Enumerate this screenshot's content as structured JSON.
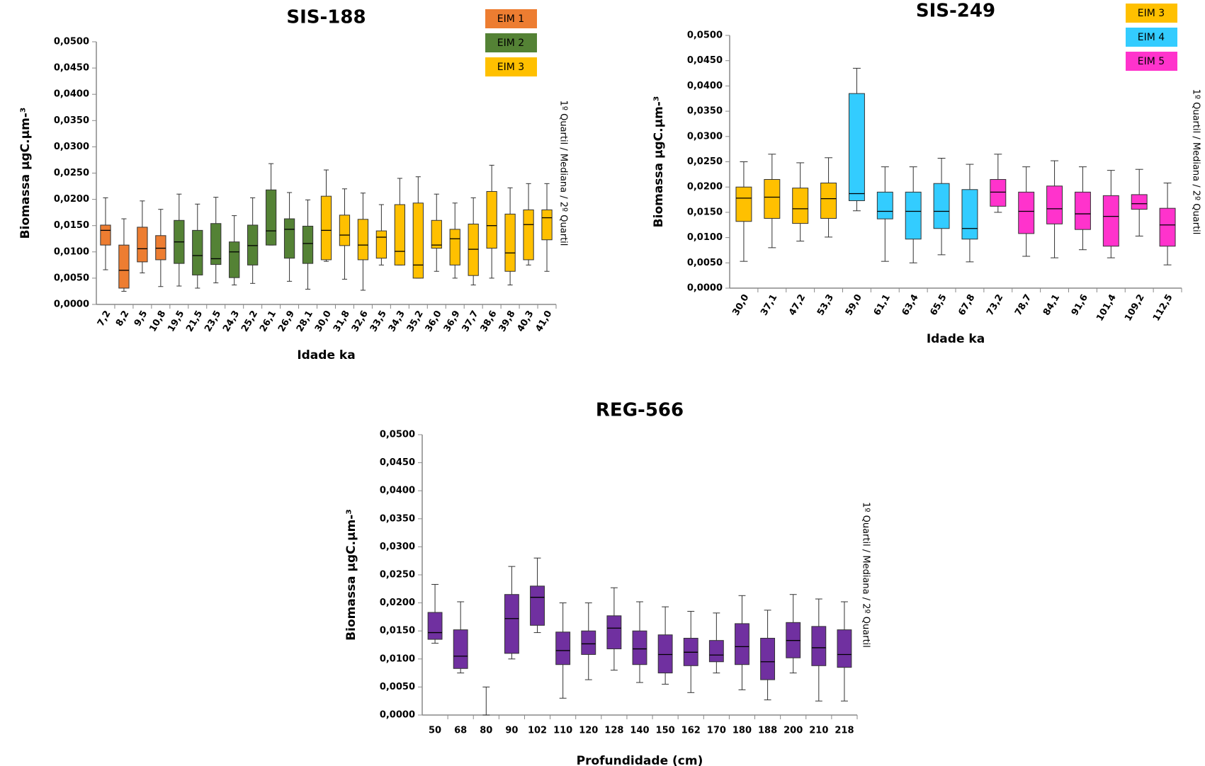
{
  "chart_data": [
    {
      "type": "box",
      "title": "SIS-188",
      "x_label": "Idade ka",
      "y_label": "Biomassa µgC.µm-³",
      "side_label": "1º Quartil /  Mediana / 2º Quartil",
      "ylim": [
        0,
        0.05
      ],
      "yticks": [
        {
          "value": 0,
          "label": "0,0000"
        },
        {
          "value": 0.005,
          "label": "0,0050"
        },
        {
          "value": 0.01,
          "label": "0,0100"
        },
        {
          "value": 0.015,
          "label": "0,0150"
        },
        {
          "value": 0.02,
          "label": "0,0200"
        },
        {
          "value": 0.025,
          "label": "0,0250"
        },
        {
          "value": 0.03,
          "label": "0,0300"
        },
        {
          "value": 0.035,
          "label": "0,0350"
        },
        {
          "value": 0.04,
          "label": "0,0400"
        },
        {
          "value": 0.045,
          "label": "0,0450"
        },
        {
          "value": 0.05,
          "label": "0,0500"
        }
      ],
      "series": [
        {
          "name": "EIM 1",
          "color": "#ED7D31",
          "categories": [
            "7,2",
            "8,2",
            "9,5",
            "10,8"
          ],
          "min": [
            0.0066,
            0.0025,
            0.006,
            0.0034
          ],
          "q1": [
            0.0113,
            0.0031,
            0.0081,
            0.0085
          ],
          "median": [
            0.0141,
            0.0065,
            0.0106,
            0.0107
          ],
          "q3": [
            0.0151,
            0.0113,
            0.0147,
            0.0131
          ],
          "max": [
            0.0203,
            0.0163,
            0.0197,
            0.0181
          ]
        },
        {
          "name": "EIM 2",
          "color": "#548235",
          "categories": [
            "19,5",
            "21,5",
            "23,5",
            "24,3",
            "25,2",
            "26,1",
            "26,9",
            "28,1"
          ],
          "min": [
            0.0035,
            0.0031,
            0.0041,
            0.0037,
            0.004,
            0.0113,
            0.0044,
            0.0029
          ],
          "q1": [
            0.0078,
            0.0056,
            0.0076,
            0.0051,
            0.0075,
            0.0113,
            0.0088,
            0.0078
          ],
          "median": [
            0.0119,
            0.0093,
            0.0087,
            0.01,
            0.0112,
            0.014,
            0.0143,
            0.0116
          ],
          "q3": [
            0.016,
            0.0141,
            0.0154,
            0.0119,
            0.0151,
            0.0218,
            0.0163,
            0.0149
          ],
          "max": [
            0.021,
            0.0191,
            0.0204,
            0.0169,
            0.0203,
            0.0268,
            0.0213,
            0.0199
          ]
        },
        {
          "name": "EIM 3",
          "color": "#FFC000",
          "categories": [
            "30,0",
            "31,8",
            "32,6",
            "33,5",
            "34,3",
            "35,2",
            "36,0",
            "36,9",
            "37,7",
            "38,6",
            "39,8",
            "40,3",
            "41,0"
          ],
          "min": [
            0.0082,
            0.0048,
            0.0027,
            0.0075,
            0.0075,
            0.005,
            0.0063,
            0.005,
            0.0037,
            0.005,
            0.0037,
            0.0075,
            0.0063
          ],
          "q1": [
            0.0085,
            0.0112,
            0.0085,
            0.0088,
            0.0075,
            0.005,
            0.0107,
            0.0075,
            0.0055,
            0.0107,
            0.0063,
            0.0085,
            0.0123
          ],
          "median": [
            0.0141,
            0.0132,
            0.0113,
            0.0128,
            0.0101,
            0.0075,
            0.0113,
            0.0125,
            0.0105,
            0.015,
            0.0098,
            0.0152,
            0.0165
          ],
          "q3": [
            0.0206,
            0.017,
            0.0162,
            0.014,
            0.019,
            0.0193,
            0.016,
            0.0143,
            0.0153,
            0.0215,
            0.0172,
            0.018,
            0.018
          ],
          "max": [
            0.0256,
            0.022,
            0.0212,
            0.019,
            0.024,
            0.0243,
            0.021,
            0.0193,
            0.0203,
            0.0265,
            0.0222,
            0.023,
            0.023
          ]
        }
      ]
    },
    {
      "type": "box",
      "title": "SIS-249",
      "x_label": "Idade ka",
      "y_label": "Biomassa µgC.µm-³",
      "side_label": "1º Quartil /  Mediana / 2º Quartil",
      "ylim": [
        0,
        0.05
      ],
      "yticks": [
        {
          "value": 0,
          "label": "0,0000"
        },
        {
          "value": 0.005,
          "label": "0,0050"
        },
        {
          "value": 0.01,
          "label": "0,0100"
        },
        {
          "value": 0.015,
          "label": "0,0150"
        },
        {
          "value": 0.02,
          "label": "0,0200"
        },
        {
          "value": 0.025,
          "label": "0,0250"
        },
        {
          "value": 0.03,
          "label": "0,0300"
        },
        {
          "value": 0.035,
          "label": "0,0350"
        },
        {
          "value": 0.04,
          "label": "0,0400"
        },
        {
          "value": 0.045,
          "label": "0,0450"
        },
        {
          "value": 0.05,
          "label": "0,0500"
        }
      ],
      "series": [
        {
          "name": "EIM 3",
          "color": "#FFC000",
          "categories": [
            "30,0",
            "37,1",
            "47,2",
            "53,3"
          ],
          "min": [
            0.0053,
            0.008,
            0.0093,
            0.0101
          ],
          "q1": [
            0.0132,
            0.0138,
            0.0128,
            0.0138
          ],
          "median": [
            0.0178,
            0.018,
            0.0157,
            0.0177
          ],
          "q3": [
            0.02,
            0.0215,
            0.0198,
            0.0208
          ],
          "max": [
            0.025,
            0.0265,
            0.0248,
            0.0258
          ]
        },
        {
          "name": "EIM 4",
          "color": "#33CCFF",
          "categories": [
            "59,0",
            "61,1",
            "63,4",
            "65,5",
            "67,8"
          ],
          "min": [
            0.0153,
            0.0053,
            0.005,
            0.0066,
            0.0052
          ],
          "q1": [
            0.0173,
            0.0137,
            0.0097,
            0.0118,
            0.0097
          ],
          "median": [
            0.0187,
            0.0152,
            0.0152,
            0.0152,
            0.0118
          ],
          "q3": [
            0.0385,
            0.019,
            0.019,
            0.0207,
            0.0195
          ],
          "max": [
            0.0435,
            0.024,
            0.024,
            0.0257,
            0.0245
          ]
        },
        {
          "name": "EIM 5",
          "color": "#FF33CC",
          "categories": [
            "73,2",
            "78,7",
            "84,1",
            "91,6",
            "101,4",
            "109,2",
            "112,5"
          ],
          "min": [
            0.015,
            0.0063,
            0.006,
            0.0076,
            0.006,
            0.0103,
            0.0046
          ],
          "q1": [
            0.0162,
            0.0108,
            0.0127,
            0.0116,
            0.0083,
            0.0156,
            0.0083
          ],
          "median": [
            0.019,
            0.0152,
            0.0157,
            0.0147,
            0.0142,
            0.0167,
            0.0125
          ],
          "q3": [
            0.0215,
            0.019,
            0.0202,
            0.019,
            0.0183,
            0.0185,
            0.0158
          ],
          "max": [
            0.0265,
            0.024,
            0.0252,
            0.024,
            0.0233,
            0.0235,
            0.0208
          ]
        }
      ]
    },
    {
      "type": "box",
      "title": "REG-566",
      "x_label": "Profundidade (cm)",
      "y_label": "Biomassa µgC.µm-³",
      "side_label": "1º Quartil /  Mediana / 2º Quartil",
      "ylim": [
        0,
        0.05
      ],
      "yticks": [
        {
          "value": 0,
          "label": "0,0000"
        },
        {
          "value": 0.005,
          "label": "0,0050"
        },
        {
          "value": 0.01,
          "label": "0,0100"
        },
        {
          "value": 0.015,
          "label": "0,0150"
        },
        {
          "value": 0.02,
          "label": "0,0200"
        },
        {
          "value": 0.025,
          "label": "0,0250"
        },
        {
          "value": 0.03,
          "label": "0,0300"
        },
        {
          "value": 0.035,
          "label": "0,0350"
        },
        {
          "value": 0.04,
          "label": "0,0400"
        },
        {
          "value": 0.045,
          "label": "0,0450"
        },
        {
          "value": 0.05,
          "label": "0,0500"
        }
      ],
      "series": [
        {
          "color": "#7030A0",
          "categories": [
            "50",
            "68",
            "80",
            "90",
            "102",
            "110",
            "120",
            "128",
            "140",
            "150",
            "162",
            "170",
            "180",
            "188",
            "200",
            "210",
            "218"
          ],
          "min": [
            0.0128,
            0.0075,
            0,
            0.01,
            0.0147,
            0.003,
            0.0063,
            0.008,
            0.0058,
            0.0055,
            0.004,
            0.0075,
            0.0045,
            0.0027,
            0.0075,
            0.0025,
            0.0025
          ],
          "q1": [
            0.0135,
            0.0083,
            null,
            0.011,
            0.016,
            0.009,
            0.0108,
            0.0118,
            0.009,
            0.0075,
            0.0088,
            0.0095,
            0.009,
            0.0063,
            0.0102,
            0.0088,
            0.0085
          ],
          "median": [
            0.0147,
            0.0105,
            null,
            0.0172,
            0.021,
            0.0115,
            0.0127,
            0.0155,
            0.0118,
            0.0108,
            0.0112,
            0.0107,
            0.0122,
            0.0095,
            0.0133,
            0.012,
            0.0108
          ],
          "q3": [
            0.0183,
            0.0152,
            null,
            0.0215,
            0.023,
            0.0148,
            0.015,
            0.0177,
            0.015,
            0.0143,
            0.0137,
            0.0133,
            0.0163,
            0.0137,
            0.0165,
            0.0158,
            0.0152
          ],
          "max": [
            0.0233,
            0.0202,
            0.005,
            0.0265,
            0.028,
            0.02,
            0.02,
            0.0227,
            0.0202,
            0.0193,
            0.0185,
            0.0182,
            0.0213,
            0.0187,
            0.0215,
            0.0207,
            0.0202
          ]
        }
      ]
    }
  ]
}
